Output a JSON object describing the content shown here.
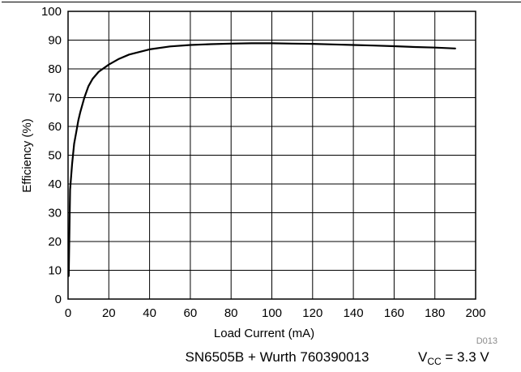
{
  "chart_data": {
    "type": "line",
    "xlabel": "Load Current (mA)",
    "ylabel": "Efficiency (%)",
    "xlim": [
      0,
      200
    ],
    "ylim": [
      0,
      100
    ],
    "xticks": [
      "0",
      "20",
      "40",
      "60",
      "80",
      "100",
      "120",
      "140",
      "160",
      "180",
      "200"
    ],
    "yticks": [
      "0",
      "10",
      "20",
      "30",
      "40",
      "50",
      "60",
      "70",
      "80",
      "90",
      "100"
    ],
    "grid": true,
    "series": [
      {
        "x": [
          0.3,
          1,
          2,
          3,
          4,
          5,
          6,
          8,
          10,
          12,
          15,
          20,
          25,
          30,
          40,
          50,
          60,
          70,
          80,
          90,
          100,
          110,
          120,
          130,
          140,
          150,
          160,
          170,
          180,
          190
        ],
        "y": [
          8,
          38,
          47,
          54,
          58,
          62,
          65,
          70,
          74,
          76.5,
          79,
          81.5,
          83.5,
          85,
          86.8,
          87.8,
          88.3,
          88.6,
          88.8,
          88.9,
          88.9,
          88.8,
          88.7,
          88.5,
          88.3,
          88.1,
          87.9,
          87.6,
          87.4,
          87.1
        ],
        "color": "#000000"
      }
    ],
    "figure_code": "D013",
    "caption_left": "SN6505B + Wurth 760390013",
    "caption_right_base": "V",
    "caption_right_sub": "CC",
    "caption_right_rest": " = 3.3 V"
  }
}
